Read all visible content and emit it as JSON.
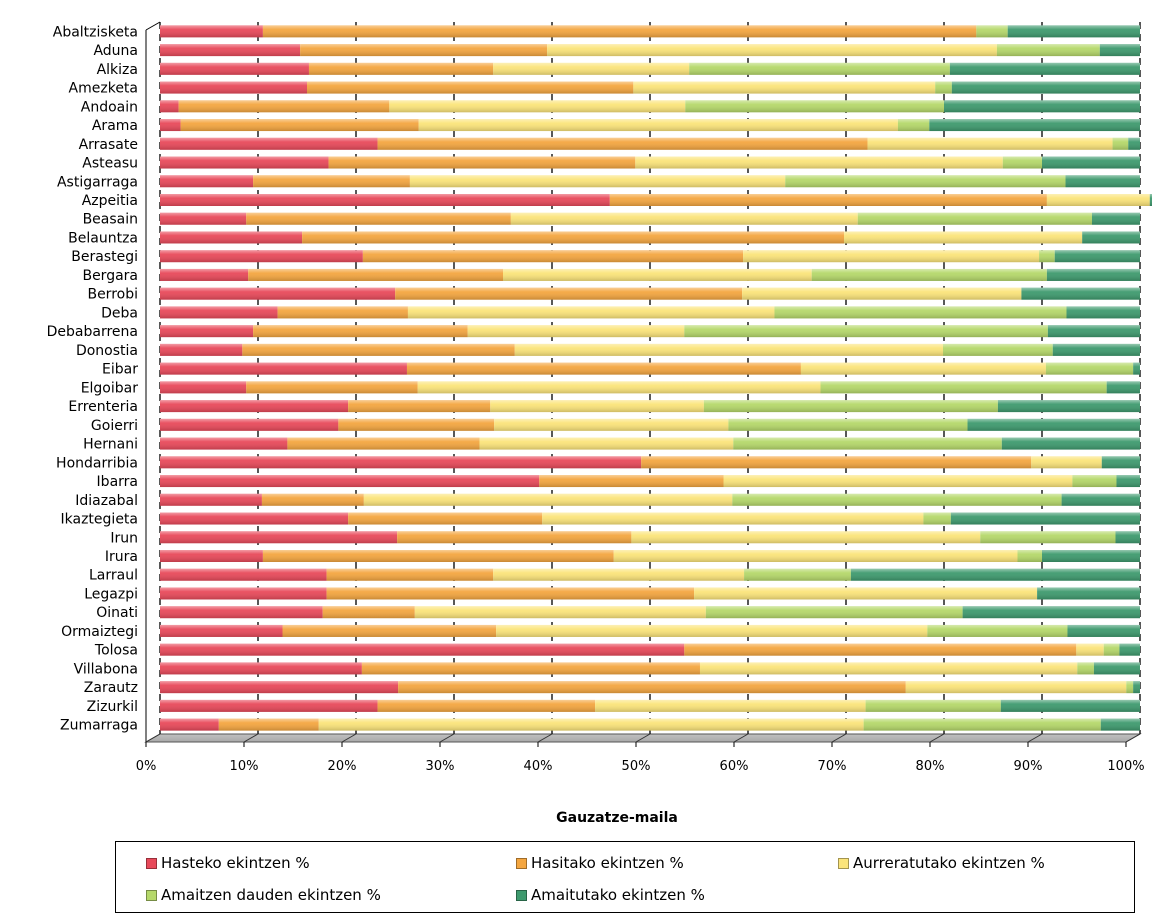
{
  "chart_data": {
    "type": "bar",
    "stacked": true,
    "orientation": "horizontal",
    "xlabel": "Gauzatze-maila",
    "xlim": [
      0,
      100
    ],
    "xticks": [
      "0%",
      "10%",
      "20%",
      "30%",
      "40%",
      "50%",
      "60%",
      "70%",
      "80%",
      "90%",
      "100%"
    ],
    "grid": true,
    "legend_position": "bottom",
    "categories": [
      "Abaltzisketa",
      "Aduna",
      "Alkiza",
      "Amezketa",
      "Andoain",
      "Arama",
      "Arrasate",
      "Asteasu",
      "Astigarraga",
      "Azpeitia",
      "Beasain",
      "Belauntza",
      "Berastegi",
      "Bergara",
      "Berrobi",
      "Deba",
      "Debabarrena",
      "Donostia",
      "Eibar",
      "Elgoibar",
      "Errenteria",
      "Goierri",
      "Hernani",
      "Hondarribia",
      "Ibarra",
      "Idiazabal",
      "Ikaztegieta",
      "Irun",
      "Irura",
      "Larraul",
      "Legazpi",
      "Oinati",
      "Ormaiztegi",
      "Tolosa",
      "Villabona",
      "Zarautz",
      "Zizurkil",
      "Zumarraga"
    ],
    "series": [
      {
        "name": "Hasteko ekintzen %",
        "color": "#e8495a",
        "values": [
          10.5,
          14.3,
          15.2,
          15,
          1.9,
          2.1,
          22.2,
          17.2,
          9.5,
          45.9,
          8.8,
          14.5,
          20.7,
          9,
          24,
          12,
          9.5,
          8.4,
          25.2,
          8.8,
          19.2,
          18.2,
          13,
          49.1,
          38.7,
          10.4,
          19.2,
          24.2,
          10.5,
          17,
          17,
          16.6,
          12.5,
          53.5,
          20.6,
          24.3,
          22.2,
          6
        ]
      },
      {
        "name": "Hasitako ekintzen %",
        "color": "#f4a640",
        "values": [
          72.8,
          25.2,
          18.8,
          33.3,
          21.5,
          24.3,
          50,
          31.3,
          16,
          44.6,
          27,
          55.3,
          38.8,
          26,
          35.4,
          13.3,
          21.9,
          27.8,
          40.2,
          17.5,
          14.5,
          15.9,
          19.6,
          39.8,
          18.8,
          10.4,
          19.8,
          23.9,
          35.8,
          17,
          37.5,
          9.4,
          21.8,
          40,
          34.5,
          51.8,
          22.2,
          10.2
        ]
      },
      {
        "name": "Aurreratutako ekintzen %",
        "color": "#fbe47a",
        "values": [
          0,
          45.9,
          20,
          30.8,
          30.2,
          48.9,
          25,
          37.5,
          38.3,
          10.5,
          35.4,
          24.3,
          30.2,
          31.5,
          28.5,
          37.4,
          22.1,
          43.7,
          25,
          41.1,
          21.8,
          23.9,
          25.9,
          7.2,
          35.6,
          37.6,
          38.9,
          35.6,
          41.2,
          25.6,
          35,
          29.7,
          44,
          2.8,
          38.5,
          22.5,
          27.6,
          55.6
        ]
      },
      {
        "name": "Amaitzen dauden ekintzen %",
        "color": "#b5d86a",
        "values": [
          3.2,
          10.5,
          26.6,
          1.7,
          26.4,
          3.2,
          1.6,
          4,
          28.6,
          0,
          23.9,
          0,
          1.6,
          24,
          0,
          29.8,
          37.1,
          11.2,
          8.9,
          29.2,
          30,
          24.4,
          27.4,
          0,
          4.5,
          33.6,
          2.8,
          13.8,
          2.5,
          10.9,
          0,
          26.2,
          14.3,
          1.6,
          1.7,
          0.7,
          13.8,
          24.2
        ]
      },
      {
        "name": "Amaitutako ekintzen %",
        "color": "#3e9a6e",
        "values": [
          13.5,
          4.1,
          19.4,
          19.2,
          20,
          21.5,
          1.2,
          10,
          7.6,
          1.2,
          4.9,
          5.9,
          8.7,
          9.5,
          12.1,
          7.5,
          9.4,
          8.9,
          0.7,
          3.4,
          14.5,
          17.6,
          14.1,
          3.9,
          2.4,
          8,
          19.3,
          2.5,
          10,
          29.5,
          10.5,
          18.1,
          7.4,
          2.1,
          4.7,
          0.7,
          14.2,
          4
        ]
      }
    ]
  }
}
